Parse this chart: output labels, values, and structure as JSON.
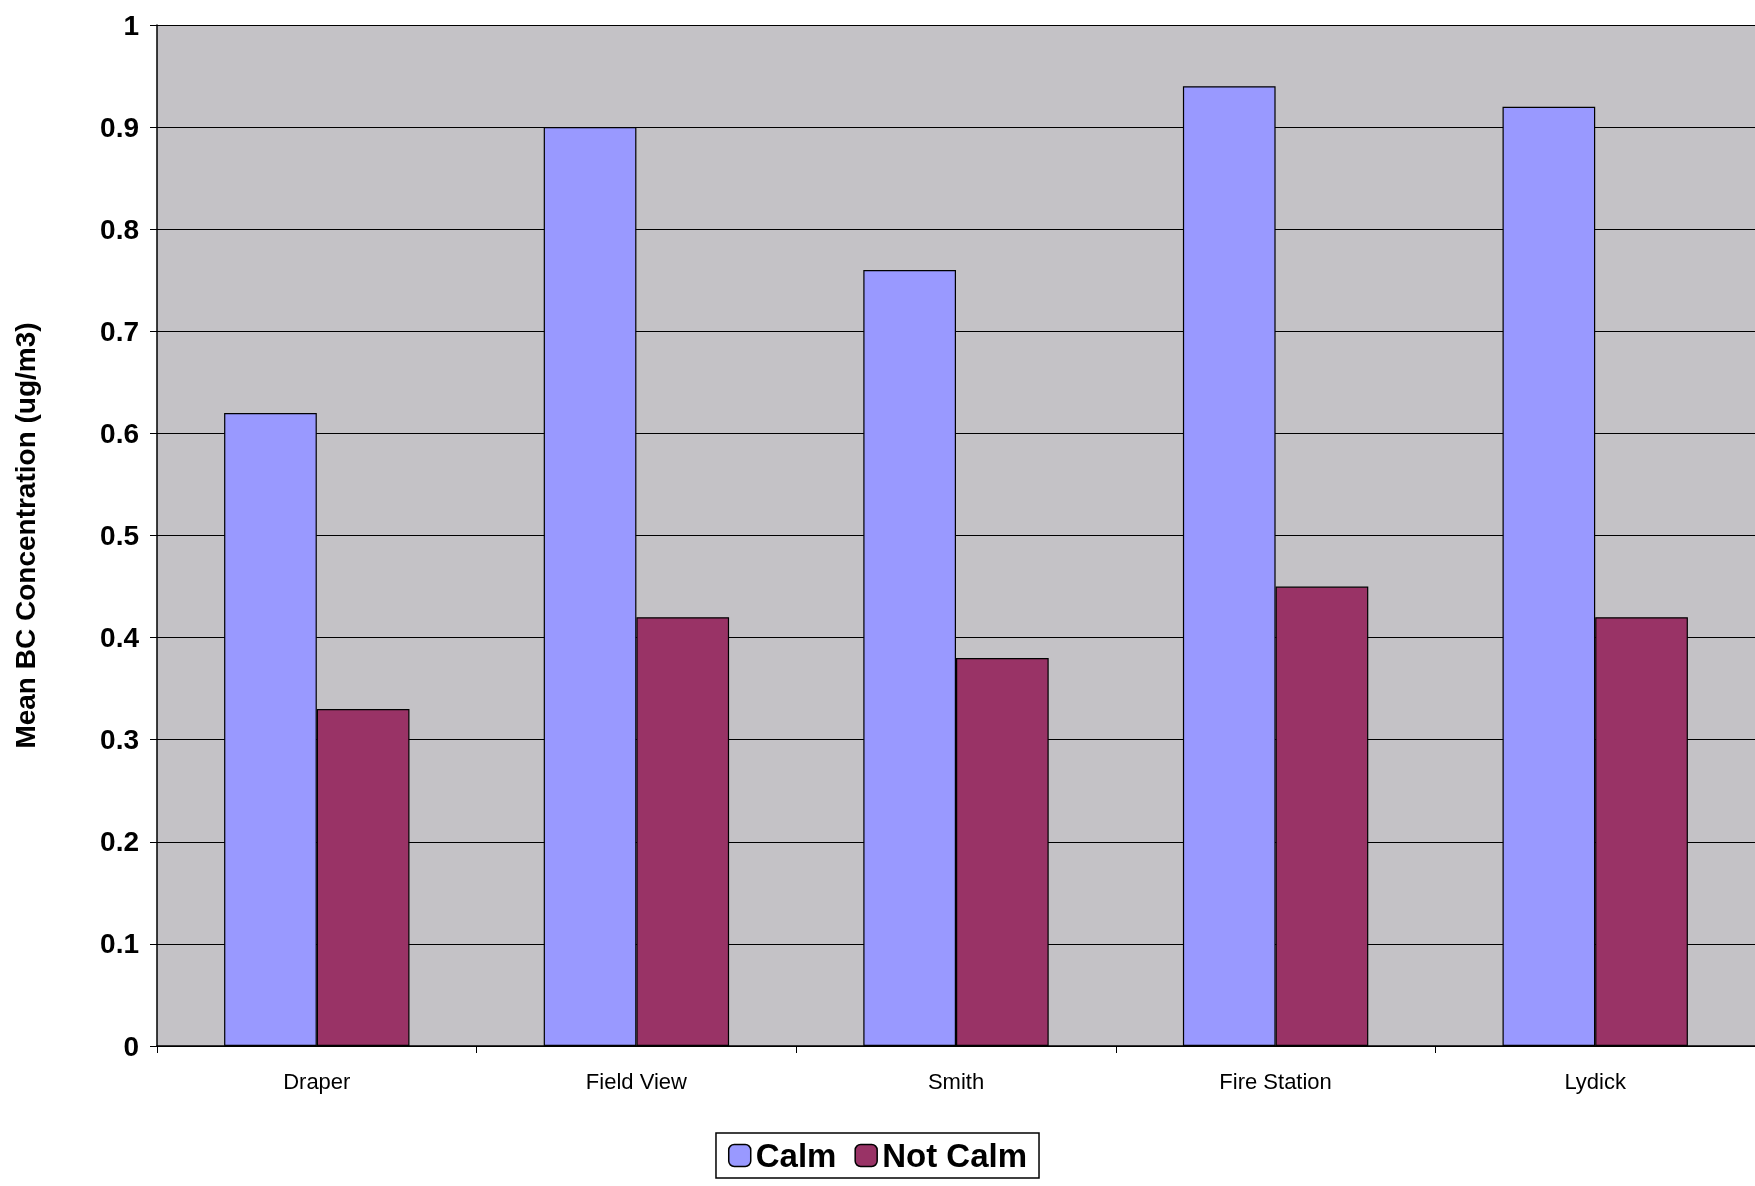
{
  "chart_data": {
    "type": "bar",
    "ylabel": "Mean BC Concentration (ug/m3)",
    "categories": [
      "Draper",
      "Field View",
      "Smith",
      "Fire Station",
      "Lydick"
    ],
    "series": [
      {
        "name": "Calm",
        "color": "#9999ff",
        "values": [
          0.62,
          0.9,
          0.76,
          0.94,
          0.92
        ]
      },
      {
        "name": "Not Calm",
        "color": "#993366",
        "values": [
          0.33,
          0.42,
          0.38,
          0.45,
          0.42
        ]
      }
    ],
    "ylim": [
      0,
      1
    ],
    "yticks": [
      0,
      0.1,
      0.2,
      0.3,
      0.4,
      0.5,
      0.6,
      0.7,
      0.8,
      0.9,
      1
    ],
    "grid": "y",
    "legend": "bottom"
  }
}
